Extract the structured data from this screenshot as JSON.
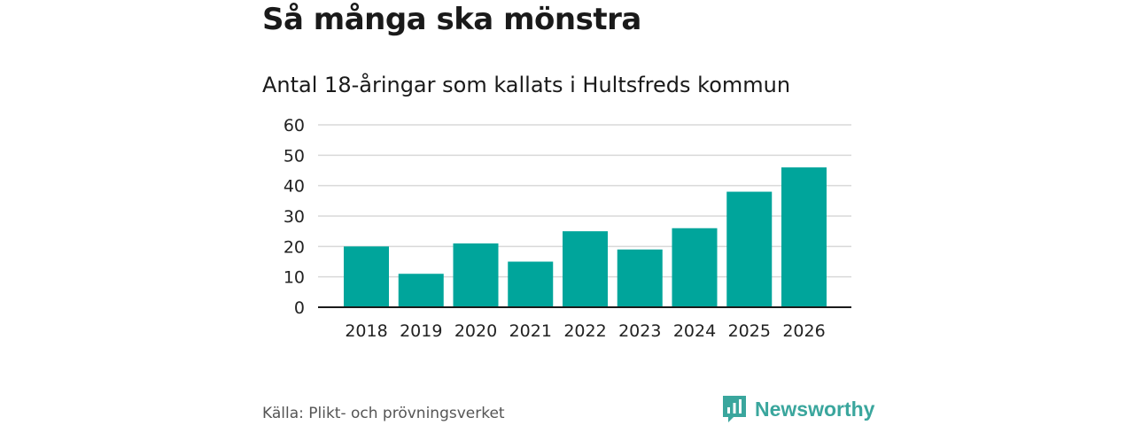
{
  "header": {
    "title": "Så många ska mönstra",
    "subtitle": "Antal 18-åringar som kallats i Hultsfreds kommun"
  },
  "footer": {
    "source": "Källa: Plikt- och prövningsverket",
    "brand": "Newsworthy",
    "brand_icon": "bar-chart-speech-bubble-icon"
  },
  "colors": {
    "bar": "#00a59b",
    "brand": "#3aa69d",
    "grid": "#d9d9d9",
    "axis": "#1a1a1a"
  },
  "chart_data": {
    "type": "bar",
    "title": "Så många ska mönstra",
    "subtitle": "Antal 18-åringar som kallats i Hultsfreds kommun",
    "xlabel": "",
    "ylabel": "",
    "categories": [
      "2018",
      "2019",
      "2020",
      "2021",
      "2022",
      "2023",
      "2024",
      "2025",
      "2026"
    ],
    "values": [
      20,
      11,
      21,
      15,
      25,
      19,
      26,
      38,
      46
    ],
    "ylim": [
      0,
      60
    ],
    "yticks": [
      0,
      10,
      20,
      30,
      40,
      50,
      60
    ],
    "grid": true,
    "legend": "none"
  }
}
